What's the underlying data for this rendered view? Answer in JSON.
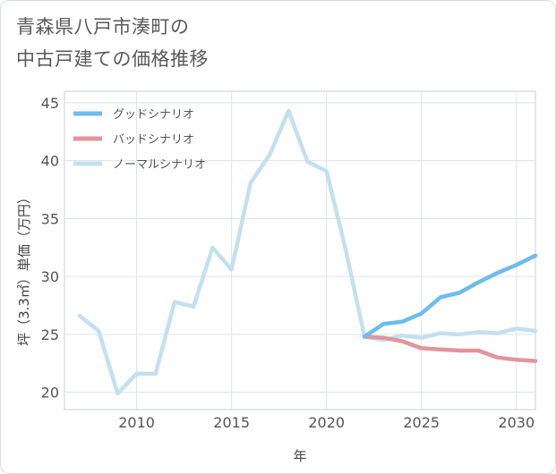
{
  "title": {
    "line1": "青森県八戸市湊町の",
    "line2": "中古戸建ての価格推移"
  },
  "chart_data": {
    "type": "line",
    "xlabel": "年",
    "ylabel": "坪（3.3㎡）単価（万円）",
    "xlim": [
      2006.2,
      2031
    ],
    "ylim": [
      18.5,
      46
    ],
    "xticks": [
      2010,
      2015,
      2020,
      2025,
      2030
    ],
    "yticks": [
      20,
      25,
      30,
      35,
      40,
      45
    ],
    "grid": true,
    "legend_position": "top-left",
    "series": [
      {
        "name": "グッドシナリオ",
        "color": "#6dbcef",
        "x": [
          2022,
          2023,
          2024,
          2025,
          2026,
          2027,
          2028,
          2029,
          2030,
          2031
        ],
        "values": [
          24.8,
          25.9,
          26.1,
          26.8,
          28.2,
          28.6,
          29.5,
          30.3,
          31.0,
          31.8
        ]
      },
      {
        "name": "バッドシナリオ",
        "color": "#e0959b",
        "x": [
          2022,
          2023,
          2024,
          2025,
          2026,
          2027,
          2028,
          2029,
          2030,
          2031
        ],
        "values": [
          24.8,
          24.7,
          24.4,
          23.8,
          23.7,
          23.6,
          23.6,
          23.0,
          22.8,
          22.7
        ]
      },
      {
        "name": "ノーマルシナリオ",
        "color": "#c2e0f0",
        "x": [
          2007,
          2008,
          2009,
          2010,
          2011,
          2012,
          2013,
          2014,
          2015,
          2016,
          2017,
          2018,
          2019,
          2020,
          2021,
          2022,
          2023,
          2024,
          2025,
          2026,
          2027,
          2028,
          2029,
          2030,
          2031
        ],
        "values": [
          26.6,
          25.3,
          19.9,
          21.6,
          21.6,
          27.8,
          27.4,
          32.5,
          30.6,
          38.1,
          40.5,
          44.3,
          39.9,
          39.1,
          32.4,
          24.8,
          24.5,
          24.9,
          24.7,
          25.1,
          25.0,
          25.2,
          25.1,
          25.5,
          25.3
        ]
      }
    ]
  }
}
